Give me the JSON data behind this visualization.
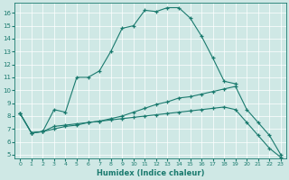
{
  "xlabel": "Humidex (Indice chaleur)",
  "ylabel": "",
  "bg_color": "#cfe8e5",
  "line_color": "#1a7a6e",
  "grid_color": "#b0d4d0",
  "xlim": [
    -0.5,
    23.5
  ],
  "ylim": [
    4.7,
    16.8
  ],
  "yticks": [
    5,
    6,
    7,
    8,
    9,
    10,
    11,
    12,
    13,
    14,
    15,
    16
  ],
  "xticks": [
    0,
    1,
    2,
    3,
    4,
    5,
    6,
    7,
    8,
    9,
    10,
    11,
    12,
    13,
    14,
    15,
    16,
    17,
    18,
    19,
    20,
    21,
    22,
    23
  ],
  "lines": [
    {
      "x": [
        0,
        1,
        2,
        3,
        4,
        5,
        6,
        7,
        8,
        9,
        10,
        11,
        12,
        13,
        14,
        15,
        16,
        17,
        18,
        19
      ],
      "y": [
        8.2,
        6.7,
        6.8,
        8.5,
        8.3,
        11.0,
        11.0,
        11.5,
        13.0,
        14.8,
        15.0,
        16.2,
        16.1,
        16.4,
        16.4,
        15.6,
        14.2,
        12.5,
        10.7,
        10.5
      ]
    },
    {
      "x": [
        0,
        1,
        2,
        3,
        4,
        5,
        6,
        7,
        8,
        9,
        10,
        11,
        12,
        13,
        14,
        15,
        16,
        17,
        18,
        19,
        20,
        21,
        22,
        23
      ],
      "y": [
        8.2,
        6.7,
        6.8,
        7.2,
        7.3,
        7.4,
        7.5,
        7.6,
        7.7,
        7.8,
        7.9,
        8.0,
        8.1,
        8.2,
        8.3,
        8.4,
        8.5,
        8.6,
        8.7,
        8.5,
        7.5,
        6.5,
        5.5,
        4.8
      ]
    },
    {
      "x": [
        0,
        1,
        2,
        3,
        4,
        5,
        6,
        7,
        8,
        9,
        10,
        11,
        12,
        13,
        14,
        15,
        16,
        17,
        18,
        19,
        20,
        21,
        22,
        23
      ],
      "y": [
        8.2,
        6.7,
        6.8,
        7.0,
        7.2,
        7.3,
        7.5,
        7.6,
        7.8,
        8.0,
        8.3,
        8.6,
        8.9,
        9.1,
        9.4,
        9.5,
        9.7,
        9.9,
        10.1,
        10.3,
        8.5,
        7.5,
        6.5,
        5.0
      ]
    }
  ]
}
